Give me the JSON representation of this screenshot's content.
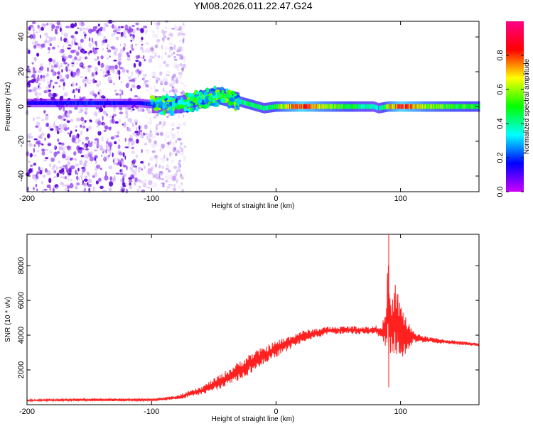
{
  "title": "YM08.2026.011.22.47.G24",
  "chart_data": [
    {
      "type": "heatmap",
      "panel": "spectrogram",
      "xlabel": "Height of straight line (km)",
      "ylabel": "Frequency (Hz)",
      "xlim": [
        -200,
        163
      ],
      "ylim": [
        -49,
        49
      ],
      "xticks": [
        -200,
        -100,
        0,
        100
      ],
      "yticks": [
        -40,
        -20,
        0,
        20,
        40
      ],
      "colorbar": {
        "label": "Normalized spectral amplitude",
        "range": [
          0.0,
          1.0
        ],
        "ticks": [
          0.0,
          0.2,
          0.4,
          0.6,
          0.8
        ],
        "colormap": [
          "#cc00ff",
          "#0000ff",
          "#00ffff",
          "#00ff00",
          "#ffff00",
          "#ff0000",
          "#ff0088"
        ]
      },
      "noise_region_x": [
        -200,
        -73
      ],
      "ridge": {
        "x": [
          -200,
          -150,
          -110,
          -95,
          -80,
          -70,
          -60,
          -50,
          -45,
          -40,
          -30,
          -20,
          -10,
          0,
          20,
          40,
          60,
          78,
          82,
          90,
          100,
          120,
          140,
          163
        ],
        "freq": [
          2,
          2,
          2,
          1,
          1,
          2,
          4,
          6,
          6,
          5,
          3,
          1,
          -1,
          0,
          0,
          0,
          0,
          0,
          -1,
          0,
          0,
          0,
          0,
          0
        ],
        "amplitude": [
          0.15,
          0.18,
          0.15,
          0.25,
          0.35,
          0.45,
          0.5,
          0.55,
          0.5,
          0.45,
          0.4,
          0.45,
          0.4,
          0.5,
          0.85,
          0.6,
          0.45,
          0.35,
          0.3,
          0.6,
          0.85,
          0.6,
          0.5,
          0.45
        ]
      }
    },
    {
      "type": "line",
      "panel": "snr",
      "xlabel": "Height of straight line (km)",
      "ylabel": "SNR (10 * v/v)",
      "xlim": [
        -200,
        163
      ],
      "ylim": [
        0,
        9800
      ],
      "xticks": [
        -200,
        -100,
        0,
        100
      ],
      "yticks": [
        2000,
        4000,
        6000,
        8000
      ],
      "color": "#ff2020",
      "series": [
        {
          "name": "SNR",
          "x": [
            -200,
            -150,
            -100,
            -80,
            -60,
            -40,
            -20,
            0,
            20,
            40,
            60,
            75,
            80,
            85,
            88,
            90,
            92,
            95,
            100,
            105,
            110,
            120,
            140,
            163
          ],
          "y": [
            250,
            280,
            280,
            400,
            800,
            1500,
            2400,
            3200,
            3900,
            4250,
            4300,
            4250,
            4300,
            4200,
            4300,
            5500,
            4200,
            5000,
            4200,
            4000,
            3900,
            3750,
            3600,
            3450
          ],
          "spread": [
            40,
            60,
            60,
            100,
            200,
            400,
            500,
            400,
            300,
            200,
            200,
            200,
            200,
            400,
            800,
            2500,
            1200,
            1800,
            1500,
            900,
            300,
            150,
            100,
            80
          ]
        }
      ]
    }
  ]
}
